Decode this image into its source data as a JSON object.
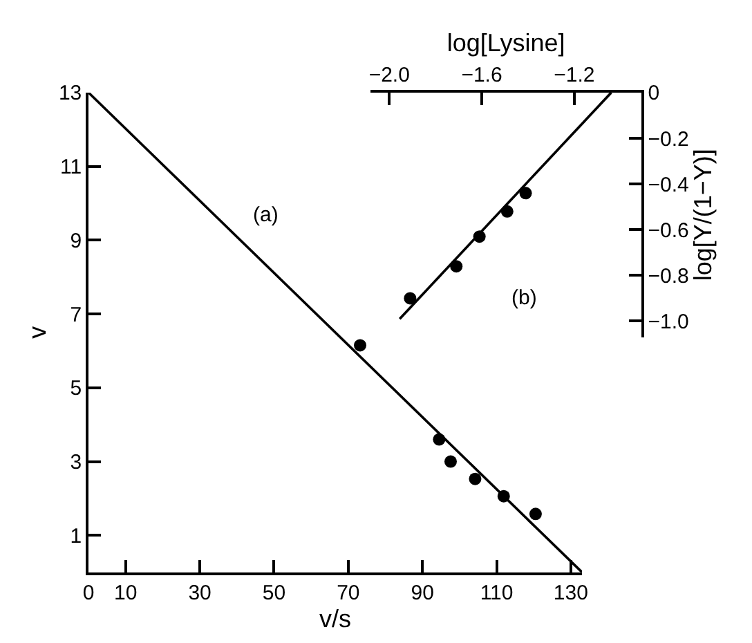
{
  "chart_data": [
    {
      "type": "scatter",
      "xlabel": "v/s",
      "ylabel": "v",
      "annotations": [
        "(a)"
      ],
      "marker": "circle",
      "xlim": [
        0,
        133
      ],
      "ylim": [
        0,
        13
      ],
      "xticks": [
        0,
        10,
        30,
        50,
        70,
        90,
        110,
        130
      ],
      "yticks": [
        1,
        3,
        5,
        7,
        9,
        11,
        13
      ],
      "series": [
        {
          "type": "scatter",
          "color": "#000000",
          "x": [
            73.2,
            94.5,
            97.6,
            104.2,
            111.9,
            120.5
          ],
          "values": [
            6.15,
            3.6,
            3.0,
            2.53,
            2.06,
            1.58
          ]
        },
        {
          "type": "line",
          "color": "#000000",
          "marker": "none",
          "x": [
            0,
            133
          ],
          "values": [
            13,
            0
          ]
        }
      ]
    },
    {
      "type": "scatter",
      "xlabel": "log[Lysine]",
      "ylabel": "log[Y/(1−Y)]",
      "annotations": [
        "(b)"
      ],
      "marker": "circle",
      "xlim": [
        -2.08,
        -0.91
      ],
      "ylim": [
        -1.07,
        0
      ],
      "xticks": [
        {
          "value": -2.0,
          "label": "−2.0"
        },
        {
          "value": -1.6,
          "label": "−1.6"
        },
        {
          "value": -1.2,
          "label": "−1.2"
        }
      ],
      "yticks": [
        0,
        {
          "value": -0.2,
          "label": "−0.2"
        },
        {
          "value": -0.4,
          "label": "−0.4"
        },
        {
          "value": -0.6,
          "label": "−0.6"
        },
        {
          "value": -0.8,
          "label": "−0.8"
        },
        {
          "value": -1.0,
          "label": "−1.0"
        }
      ],
      "series": [
        {
          "type": "scatter",
          "color": "#000000",
          "x": [
            -1.91,
            -1.71,
            -1.61,
            -1.49,
            -1.41
          ],
          "values": [
            -0.9,
            -0.76,
            -0.63,
            -0.52,
            -0.44
          ]
        },
        {
          "type": "line",
          "color": "#000000",
          "marker": "none",
          "x": [
            -1.955,
            -1.04
          ],
          "values": [
            -0.99,
            0
          ]
        }
      ]
    }
  ]
}
